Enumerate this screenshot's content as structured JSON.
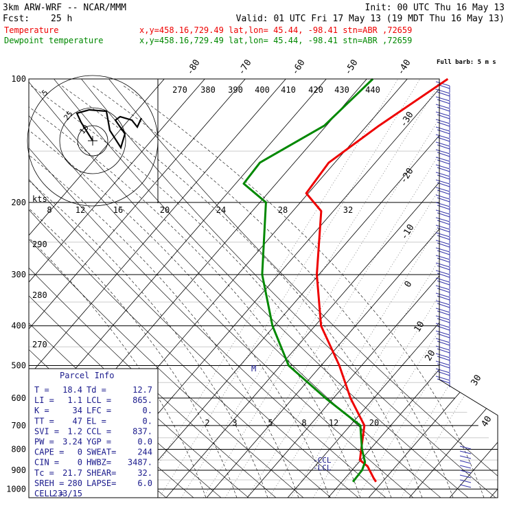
{
  "header": {
    "model_line": "3km ARW-WRF -- NCAR/MMM",
    "init_line": "Init: 00 UTC Thu 16 May 13",
    "fcst_label": "Fcst:",
    "fcst_value": "25 h",
    "valid_line": "Valid: 01 UTC Fri 17 May 13 (19 MDT Thu 16 May 13)",
    "temp_label": "Temperature",
    "dew_label": "Dewpoint temperature",
    "location_info": "x,y=458.16,729.49   lat,lon= 45.44, -98.41   stn=ABR ,72659"
  },
  "colors": {
    "temperature": "#ee0000",
    "dewpoint": "#008800",
    "parcel_text": "#1a1a8c",
    "wind_barb": "#3333aa",
    "axes": "#000000"
  },
  "wind_barb_label": "Full barb: 5 m s",
  "hodograph_labels": [
    "5",
    "10",
    "25"
  ],
  "kts_label": "kts",
  "parcel_info": {
    "title": "Parcel Info",
    "rows": [
      [
        "T  =",
        "18.4",
        "Td  =",
        "12.7"
      ],
      [
        "LI =",
        "1.1",
        "LCL =",
        "865."
      ],
      [
        "K  =",
        "34",
        "LFC =",
        "0."
      ],
      [
        "TT =",
        "47",
        "EL  =",
        "0."
      ],
      [
        "SVI =",
        "1.2",
        "CCL =",
        "837."
      ],
      [
        "PW =",
        "3.24",
        "YGP =",
        "0.0"
      ],
      [
        "CAPE =",
        "0",
        "SWEAT=",
        "244"
      ],
      [
        "CIN =",
        "0",
        "HWBZ=",
        "3487."
      ],
      [
        "Tc =",
        "21.7",
        "SHEAR=",
        "32."
      ],
      [
        "SREH =",
        "280",
        "LAPSE=",
        "6.0"
      ],
      [
        "CELL =",
        "233/15",
        "",
        ""
      ]
    ]
  },
  "chart_data": {
    "type": "line",
    "title": "",
    "pressure_labels": [
      "100",
      "200",
      "300",
      "400",
      "500",
      "600",
      "700",
      "800",
      "900",
      "1000"
    ],
    "isotherm_labels": [
      "-80",
      "-70",
      "-60",
      "-50",
      "-40",
      "-30",
      "-20",
      "-10",
      "0",
      "10",
      "20",
      "30",
      "40"
    ],
    "theta_labels": [
      "270",
      "380",
      "390",
      "400",
      "410",
      "420",
      "430",
      "440"
    ],
    "mixing_ratio_labels": [
      "8",
      "12",
      "16",
      "20",
      "24",
      "28",
      "32"
    ],
    "left_theta_labels": [
      "290",
      "280",
      "270"
    ],
    "lower_mixing_labels": [
      "2",
      "3",
      "5",
      "8",
      "12",
      "20"
    ],
    "ccl_label": "-CCL",
    "lcl_label": "-LCL",
    "level_marker": "M",
    "series": [
      {
        "name": "Temperature",
        "x": [
          18.4,
          17.0,
          13.0,
          9.8,
          7.8,
          3.5,
          -5.8,
          -15.5,
          -28.5,
          -40.5,
          -53.0,
          -60.5,
          -61.5,
          -57.0,
          -50.0
        ],
        "y": [
          960,
          940,
          880,
          850,
          800,
          700,
          600,
          500,
          400,
          300,
          210,
          190,
          160,
          130,
          100
        ]
      },
      {
        "name": "Dewpoint temperature",
        "x": [
          12.7,
          12.5,
          11.5,
          8.0,
          2.5,
          -12.0,
          -28.0,
          -40.5,
          -54.0,
          -68.5,
          -78.0,
          -78.5,
          -70.5,
          -68.5
        ],
        "y": [
          960,
          900,
          860,
          800,
          700,
          600,
          500,
          400,
          300,
          200,
          180,
          160,
          130,
          100
        ]
      }
    ],
    "ylim": [
      1050,
      100
    ]
  }
}
